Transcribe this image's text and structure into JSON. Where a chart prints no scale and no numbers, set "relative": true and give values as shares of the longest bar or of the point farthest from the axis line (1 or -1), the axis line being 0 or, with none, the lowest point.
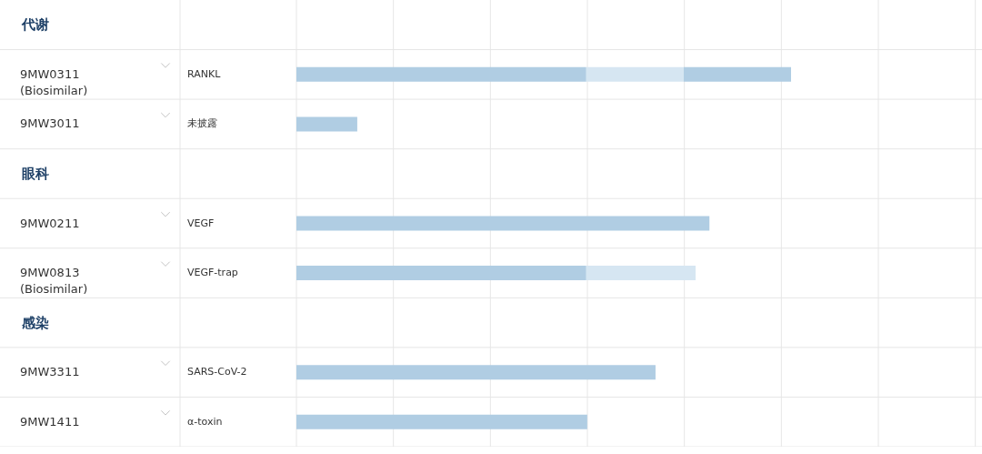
{
  "chart_data": {
    "type": "bar",
    "orientation": "horizontal",
    "stacked": true,
    "relative": true,
    "categories": [
      "代谢",
      "9MW0311\n(Biosimilar)",
      "9MW3011",
      "眼科",
      "9MW0211",
      "9MW0813\n(Biosimilar)",
      "感染",
      "9MW3311",
      "9MW1411"
    ],
    "series": [
      {
        "color": "#b0cde3",
        "values": [
          null,
          0.586,
          0.123,
          null,
          0.835,
          0.586,
          null,
          0.726,
          0.588
        ]
      },
      {
        "color": "#d6e6f2",
        "values": [
          null,
          0.197,
          null,
          null,
          null,
          0.221,
          null,
          null,
          null
        ]
      },
      {
        "color": "#b0cde3",
        "values": [
          null,
          0.217,
          null,
          null,
          null,
          null,
          null,
          null,
          null
        ]
      }
    ],
    "grid": true,
    "annotations": [
      "RANKL",
      "未披露",
      "VEGF",
      "VEGF-trap",
      "SARS-CoV-2",
      "α-toxin"
    ]
  }
}
